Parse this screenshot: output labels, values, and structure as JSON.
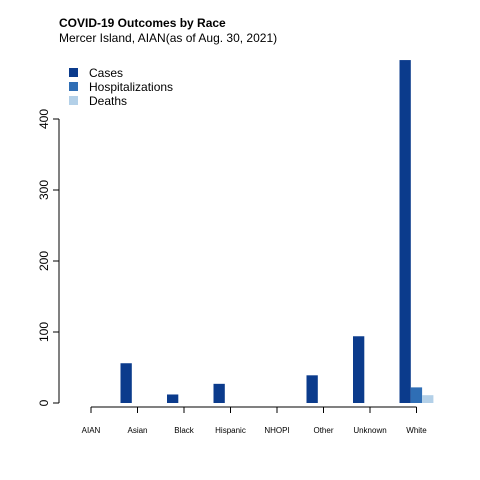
{
  "chart_data": {
    "type": "bar",
    "title": "COVID-19 Outcomes by Race",
    "subtitle": "Mercer Island, AIAN(as of Aug. 30, 2021)",
    "xlabel": "",
    "ylabel": "",
    "ylim": [
      0,
      480
    ],
    "yticks": [
      0,
      100,
      200,
      300,
      400
    ],
    "grid": false,
    "legend_position": "top-left",
    "categories": [
      "AIAN",
      "Asian",
      "Black",
      "Hispanic",
      "NHOPI",
      "Other",
      "Unknown",
      "White"
    ],
    "series": [
      {
        "name": "Cases",
        "color": "#0b3b8c",
        "values": [
          0,
          56,
          12,
          27,
          0,
          39,
          94,
          483
        ]
      },
      {
        "name": "Hospitalizations",
        "color": "#2f6eb5",
        "values": [
          0,
          0,
          0,
          0,
          0,
          0,
          0,
          22
        ]
      },
      {
        "name": "Deaths",
        "color": "#b3d0e8",
        "values": [
          0,
          0,
          0,
          0,
          0,
          0,
          0,
          11
        ]
      }
    ]
  }
}
